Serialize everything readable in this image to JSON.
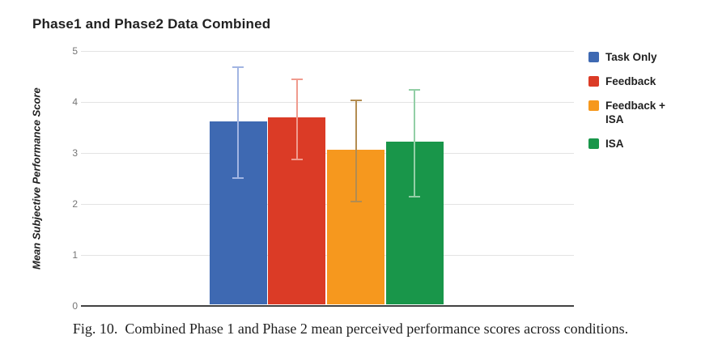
{
  "figure": {
    "caption": "Fig. 10.  Combined Phase 1 and Phase 2 mean perceived performance scores across conditions."
  },
  "chart_data": {
    "type": "bar",
    "title": "Phase1 and Phase2 Data Combined",
    "ylabel": "Mean Subjective Performance Score",
    "xlabel": "",
    "ylim": [
      0,
      5
    ],
    "yticks": [
      0,
      1,
      2,
      3,
      4,
      5
    ],
    "grid": true,
    "legend_position": "right",
    "categories": [
      "Task Only",
      "Feedback",
      "Feedback + ISA",
      "ISA"
    ],
    "values": [
      3.58,
      3.66,
      3.03,
      3.19
    ],
    "error_bars": {
      "upper": [
        4.7,
        4.46,
        4.04,
        4.25
      ],
      "lower": [
        2.49,
        2.86,
        2.03,
        2.12
      ]
    },
    "bar_colors": [
      "#3e69b2",
      "#db3b26",
      "#f6981e",
      "#19964a"
    ],
    "error_bar_colors": [
      "#a2b5e2",
      "#f09b8e",
      "#b38c51",
      "#92cfa6"
    ],
    "colors": {
      "title_text": "#212121",
      "tick_text": "#757575",
      "gridline": "#e3e3e3",
      "baseline": "#424242"
    }
  }
}
